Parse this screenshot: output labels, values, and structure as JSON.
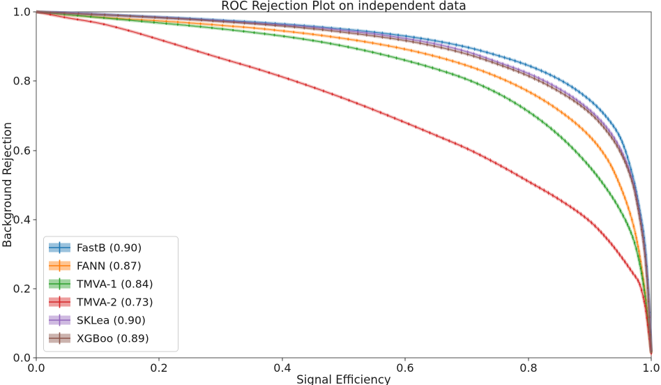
{
  "chart_data": {
    "type": "line",
    "title": "ROC Rejection Plot on independent data",
    "xlabel": "Signal Efficiency",
    "ylabel": "Background Rejection",
    "xlim": [
      0.0,
      1.0
    ],
    "ylim": [
      0.0,
      1.0
    ],
    "grid": false,
    "legend_position": "lower-left",
    "x_tick_labels": [
      "0.0",
      "0.2",
      "0.4",
      "0.6",
      "0.8",
      "1.0"
    ],
    "y_tick_labels": [
      "0.0",
      "0.2",
      "0.4",
      "0.6",
      "0.8",
      "1.0"
    ],
    "x": [
      0.0,
      0.05,
      0.1,
      0.15,
      0.2,
      0.25,
      0.3,
      0.35,
      0.4,
      0.45,
      0.5,
      0.55,
      0.6,
      0.65,
      0.7,
      0.75,
      0.8,
      0.85,
      0.9,
      0.93,
      0.95,
      0.97,
      0.98,
      0.99,
      0.995,
      1.0
    ],
    "series": [
      {
        "name": "FastB",
        "label": "FastB (0.90)",
        "auc": 0.9,
        "color": "#1f77b4",
        "values": [
          1.0,
          0.997,
          0.993,
          0.989,
          0.985,
          0.981,
          0.976,
          0.971,
          0.965,
          0.958,
          0.95,
          0.941,
          0.93,
          0.916,
          0.898,
          0.874,
          0.845,
          0.805,
          0.745,
          0.69,
          0.635,
          0.525,
          0.44,
          0.325,
          0.205,
          0.02
        ]
      },
      {
        "name": "FANN",
        "label": "FANN (0.87)",
        "auc": 0.87,
        "color": "#ff7f0e",
        "values": [
          1.0,
          0.992,
          0.985,
          0.979,
          0.974,
          0.968,
          0.961,
          0.954,
          0.945,
          0.935,
          0.923,
          0.909,
          0.892,
          0.871,
          0.845,
          0.812,
          0.77,
          0.715,
          0.64,
          0.57,
          0.495,
          0.39,
          0.308,
          0.188,
          0.108,
          0.015
        ]
      },
      {
        "name": "TMVA-1",
        "label": "TMVA-1 (0.84)",
        "auc": 0.84,
        "color": "#2ca02c",
        "values": [
          1.0,
          0.992,
          0.984,
          0.976,
          0.968,
          0.96,
          0.951,
          0.941,
          0.93,
          0.917,
          0.901,
          0.882,
          0.86,
          0.835,
          0.805,
          0.765,
          0.712,
          0.643,
          0.552,
          0.482,
          0.425,
          0.348,
          0.283,
          0.178,
          0.1,
          0.015
        ]
      },
      {
        "name": "TMVA-2",
        "label": "TMVA-2 (0.73)",
        "auc": 0.73,
        "color": "#d62728",
        "values": [
          1.0,
          0.983,
          0.968,
          0.946,
          0.92,
          0.893,
          0.866,
          0.84,
          0.812,
          0.782,
          0.75,
          0.716,
          0.68,
          0.643,
          0.605,
          0.56,
          0.51,
          0.458,
          0.395,
          0.34,
          0.295,
          0.245,
          0.218,
          0.15,
          0.085,
          0.012
        ]
      },
      {
        "name": "SKLea",
        "label": "SKLea (0.90)",
        "auc": 0.9,
        "color": "#9467bd",
        "values": [
          1.0,
          0.997,
          0.993,
          0.988,
          0.984,
          0.979,
          0.974,
          0.968,
          0.962,
          0.955,
          0.946,
          0.936,
          0.923,
          0.907,
          0.885,
          0.855,
          0.822,
          0.778,
          0.716,
          0.66,
          0.603,
          0.51,
          0.425,
          0.3,
          0.19,
          0.018
        ]
      },
      {
        "name": "XGBoo",
        "label": "XGBoo (0.89)",
        "auc": 0.89,
        "color": "#8c564b",
        "values": [
          1.0,
          0.996,
          0.992,
          0.988,
          0.983,
          0.978,
          0.972,
          0.966,
          0.959,
          0.951,
          0.941,
          0.93,
          0.917,
          0.9,
          0.878,
          0.849,
          0.815,
          0.77,
          0.708,
          0.65,
          0.594,
          0.502,
          0.417,
          0.293,
          0.183,
          0.018
        ]
      }
    ]
  }
}
